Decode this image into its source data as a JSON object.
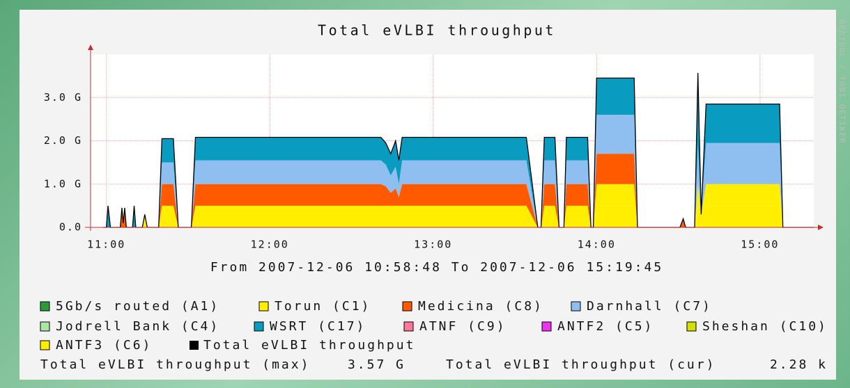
{
  "chart_data": {
    "type": "stacked_area",
    "title": "Total eVLBI throughput",
    "xlabel": "From 2007-12-06 10:58:48 To 2007-12-06 15:19:45",
    "watermark": "RRDTOOL / TOBI OETIKER",
    "x": [
      10.98,
      11.0,
      11.01,
      11.025,
      11.085,
      11.095,
      11.103,
      11.112,
      11.122,
      11.16,
      11.17,
      11.18,
      11.22,
      11.235,
      11.25,
      11.32,
      11.34,
      11.41,
      11.44,
      11.52,
      11.545,
      12.68,
      12.71,
      12.74,
      12.77,
      12.79,
      12.81,
      13.57,
      13.64,
      13.66,
      13.68,
      13.745,
      13.77,
      13.8,
      13.815,
      13.945,
      13.965,
      13.98,
      14.0,
      14.23,
      14.25,
      14.51,
      14.53,
      14.545,
      14.6,
      14.62,
      14.64,
      14.67,
      15.12,
      15.14,
      15.33
    ],
    "xlim": [
      10.98,
      15.329
    ],
    "xticks": [
      {
        "value": 11,
        "label": "11:00"
      },
      {
        "value": 12,
        "label": "12:00"
      },
      {
        "value": 13,
        "label": "13:00"
      },
      {
        "value": 14,
        "label": "14:00"
      },
      {
        "value": 15,
        "label": "15:00"
      }
    ],
    "ylim": [
      0,
      4
    ],
    "yticks": [
      {
        "value": 0,
        "label": "0.0"
      },
      {
        "value": 1,
        "label": "1.0 G"
      },
      {
        "value": 2,
        "label": "2.0 G"
      },
      {
        "value": 3,
        "label": "3.0 G"
      }
    ],
    "grid": true,
    "series": [
      {
        "name": "5Gb/s routed (A1)",
        "color": "#2e9a36",
        "values": [
          0,
          0,
          0,
          0,
          0,
          0,
          0,
          0,
          0,
          0,
          0,
          0,
          0,
          0,
          0,
          0,
          0,
          0,
          0,
          0,
          0,
          0,
          0,
          0,
          0,
          0,
          0,
          0,
          0,
          0,
          0,
          0,
          0,
          0,
          0,
          0,
          0,
          0,
          0,
          0,
          0,
          0,
          0,
          0,
          0,
          0,
          0,
          0,
          0,
          0,
          0
        ]
      },
      {
        "name": "Torun (C1)",
        "color": "#ffee00",
        "values": [
          0,
          0,
          0,
          0,
          0,
          0,
          0,
          0,
          0,
          0,
          0,
          0,
          0,
          0.3,
          0,
          0,
          0.5,
          0.5,
          0,
          0,
          0.5,
          0.5,
          0.5,
          0.5,
          0.5,
          0.5,
          0.5,
          0.5,
          0,
          0,
          0.5,
          0.5,
          0,
          0,
          0.5,
          0.5,
          0,
          0,
          0.5,
          0.5,
          0,
          0,
          0,
          0,
          0,
          0.5,
          0.3,
          0.5,
          0.5,
          0,
          0
        ]
      },
      {
        "name": "Medicina (C8)",
        "color": "#ff5a00",
        "values": [
          0,
          0,
          0,
          0,
          0,
          0.45,
          0.1,
          0.45,
          0,
          0,
          0,
          0,
          0,
          0,
          0,
          0,
          0.5,
          0.5,
          0,
          0,
          0.5,
          0.5,
          0.45,
          0.3,
          0.4,
          0.2,
          0.5,
          0.5,
          0,
          0,
          0.5,
          0.5,
          0,
          0,
          0.5,
          0.5,
          0,
          0,
          0.7,
          0.7,
          0,
          0,
          0.2,
          0,
          0,
          0,
          0,
          0,
          0,
          0,
          0
        ]
      },
      {
        "name": "Darnhall (C7)",
        "color": "#8fbff0",
        "values": [
          0,
          0,
          0,
          0,
          0,
          0,
          0,
          0,
          0,
          0,
          0,
          0,
          0,
          0,
          0,
          0,
          0.5,
          0.5,
          0,
          0,
          0.55,
          0.55,
          0.5,
          0.4,
          0.5,
          0.3,
          0.55,
          0.55,
          0,
          0,
          0.55,
          0.55,
          0,
          0,
          0.55,
          0.55,
          0,
          0,
          0.9,
          0.9,
          0,
          0,
          0,
          0,
          0,
          0.9,
          0,
          0.95,
          0.95,
          0,
          0
        ]
      },
      {
        "name": "Jodrell Bank (C4)",
        "color": "#a8e6a2",
        "values": [
          0,
          0,
          0,
          0,
          0,
          0,
          0,
          0,
          0,
          0,
          0,
          0,
          0,
          0,
          0,
          0,
          0,
          0,
          0,
          0,
          0,
          0,
          0,
          0,
          0,
          0,
          0,
          0,
          0,
          0,
          0,
          0,
          0,
          0,
          0,
          0,
          0,
          0,
          0,
          0,
          0,
          0,
          0,
          0,
          0,
          0,
          0,
          0,
          0,
          0,
          0
        ]
      },
      {
        "name": "WSRT (C17)",
        "color": "#0a9cc0",
        "values": [
          0,
          0,
          0.5,
          0,
          0,
          0,
          0,
          0,
          0,
          0,
          0.5,
          0,
          0,
          0,
          0,
          0,
          0.55,
          0.55,
          0,
          0,
          0.53,
          0.53,
          0.5,
          0.5,
          0.6,
          0.55,
          0.53,
          0.53,
          0,
          0,
          0.53,
          0.53,
          0,
          0,
          0.53,
          0.53,
          0,
          0,
          0.85,
          0.85,
          0,
          0,
          0,
          0,
          0,
          1.67,
          0,
          0.9,
          0.9,
          0,
          0
        ]
      },
      {
        "name": "ATNF (C9)",
        "color": "#ff7799",
        "values": [
          0,
          0,
          0,
          0,
          0,
          0,
          0,
          0,
          0,
          0,
          0,
          0,
          0,
          0,
          0,
          0,
          0,
          0,
          0,
          0,
          0,
          0,
          0,
          0,
          0,
          0,
          0,
          0,
          0,
          0,
          0,
          0,
          0,
          0,
          0,
          0,
          0,
          0,
          0,
          0,
          0,
          0,
          0,
          0,
          0,
          0,
          0,
          0,
          0,
          0,
          0
        ]
      },
      {
        "name": "ANTF2 (C5)",
        "color": "#ee33ee",
        "values": [
          0,
          0,
          0,
          0,
          0,
          0,
          0,
          0,
          0,
          0,
          0,
          0,
          0,
          0,
          0,
          0,
          0,
          0,
          0,
          0,
          0,
          0,
          0,
          0,
          0,
          0,
          0,
          0,
          0,
          0,
          0,
          0,
          0,
          0,
          0,
          0,
          0,
          0,
          0,
          0,
          0,
          0,
          0,
          0,
          0,
          0,
          0,
          0,
          0,
          0,
          0
        ]
      },
      {
        "name": "Sheshan (C10)",
        "color": "#d4e000",
        "values": [
          0,
          0,
          0,
          0,
          0,
          0,
          0,
          0,
          0,
          0,
          0,
          0,
          0,
          0,
          0,
          0,
          0,
          0,
          0,
          0,
          0,
          0,
          0,
          0,
          0,
          0,
          0,
          0,
          0,
          0,
          0,
          0,
          0,
          0,
          0,
          0,
          0,
          0,
          0,
          0,
          0,
          0,
          0,
          0,
          0,
          0,
          0,
          0,
          0,
          0,
          0
        ]
      },
      {
        "name": "ANTF3 (C6)",
        "color": "#ffee00",
        "values": [
          0,
          0,
          0,
          0,
          0,
          0,
          0,
          0,
          0,
          0,
          0,
          0,
          0,
          0,
          0,
          0,
          0,
          0,
          0,
          0,
          0,
          0,
          0,
          0,
          0,
          0,
          0,
          0,
          0,
          0,
          0,
          0,
          0,
          0,
          0,
          0,
          0,
          0,
          0.5,
          0.5,
          0,
          0,
          0,
          0,
          0,
          0.5,
          0,
          0.5,
          0.5,
          0,
          0
        ]
      }
    ],
    "total": {
      "name": "Total eVLBI throughput",
      "color": "#000000",
      "values": [
        0,
        0,
        0.5,
        0,
        0,
        0.45,
        0.1,
        0.45,
        0,
        0,
        0.5,
        0,
        0,
        0.3,
        0,
        0,
        2.05,
        2.05,
        0,
        0,
        2.08,
        2.08,
        1.95,
        1.7,
        2.0,
        1.55,
        2.08,
        2.08,
        0,
        0,
        2.08,
        2.08,
        0,
        0,
        2.08,
        2.08,
        0,
        0,
        3.45,
        3.45,
        0,
        0,
        0.2,
        0,
        0,
        3.57,
        0.3,
        2.85,
        2.85,
        0,
        0
      ]
    },
    "stats": [
      {
        "label": "Total eVLBI throughput (max)",
        "value": "3.57 G"
      },
      {
        "label": "Total eVLBI throughput (cur)",
        "value": "2.28 k"
      }
    ]
  }
}
